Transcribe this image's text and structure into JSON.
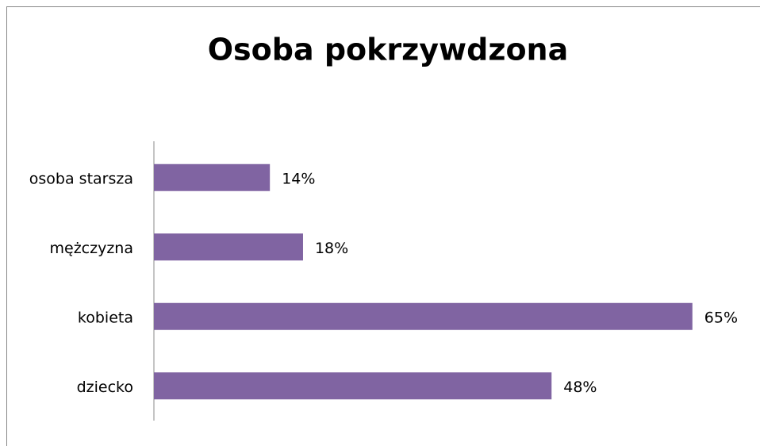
{
  "chart_data": {
    "type": "bar",
    "orientation": "horizontal",
    "title": "Osoba pokrzywdzona",
    "categories": [
      "osoba starsza",
      "mężczyzna",
      "kobieta",
      "dziecko"
    ],
    "values": [
      14,
      18,
      65,
      48
    ],
    "value_labels": [
      "14%",
      "18%",
      "65%",
      "48%"
    ],
    "color": "#8064a2",
    "xlim": [
      0,
      70
    ]
  }
}
